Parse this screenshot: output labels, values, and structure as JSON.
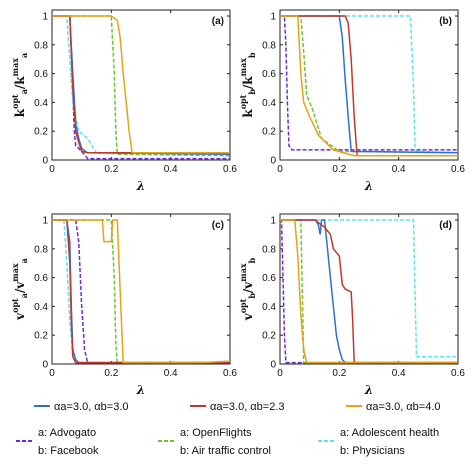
{
  "colors": {
    "blue": "#2f6fd0",
    "red": "#c0392b",
    "orange": "#e6a21a",
    "purple": "#6a2bd6",
    "green": "#6cc432",
    "cyan": "#5de3ef"
  },
  "legend": {
    "params": [
      {
        "color": "blue",
        "label": "αa=3.0,   αb=3.0"
      },
      {
        "color": "red",
        "label": "αa=3.0,   αb=2.3"
      },
      {
        "color": "orange",
        "label": "αa=3.0,   αb=4.0"
      }
    ],
    "datasets": [
      {
        "color": "purple",
        "line1": "a: Advogato",
        "line2": "b: Facebook"
      },
      {
        "color": "green",
        "line1": "a: OpenFlights",
        "line2": "b: Air traffic control"
      },
      {
        "color": "cyan",
        "line1": "a: Adolescent health",
        "line2": "b: Physicians"
      }
    ]
  },
  "chart_data": [
    {
      "type": "line",
      "panel": "(a)",
      "xlabel": "λ",
      "ylabel_html": "k_a^opt / k_a^max",
      "xlim": [
        0,
        0.6
      ],
      "ylim": [
        0,
        1
      ],
      "xticks": [
        "0",
        "0.2",
        "0.4",
        "0.6"
      ],
      "yticks": [
        "0",
        "0.2",
        "0.4",
        "0.6",
        "0.8",
        "1"
      ],
      "series": [
        {
          "color": "purple",
          "dash": true,
          "x": [
            0,
            0.06,
            0.07,
            0.075,
            0.08,
            0.1,
            0.12,
            0.6
          ],
          "y": [
            1,
            1,
            0.5,
            0.2,
            0.1,
            0.06,
            0.01,
            0.01
          ]
        },
        {
          "color": "green",
          "dash": true,
          "x": [
            0,
            0.2,
            0.21,
            0.215,
            0.22,
            0.6
          ],
          "y": [
            1,
            1,
            0.6,
            0.2,
            0.04,
            0.03
          ]
        },
        {
          "color": "cyan",
          "dash": true,
          "x": [
            0,
            0.05,
            0.07,
            0.09,
            0.12,
            0.15,
            0.6
          ],
          "y": [
            1,
            1,
            0.4,
            0.2,
            0.15,
            0.05,
            0.04
          ]
        },
        {
          "color": "blue",
          "dash": false,
          "x": [
            0,
            0.06,
            0.07,
            0.08,
            0.09,
            0.1,
            0.12,
            0.6
          ],
          "y": [
            1,
            1,
            0.6,
            0.25,
            0.15,
            0.08,
            0.05,
            0.04
          ]
        },
        {
          "color": "red",
          "dash": false,
          "x": [
            0,
            0.06,
            0.07,
            0.08,
            0.09,
            0.1,
            0.12,
            0.6
          ],
          "y": [
            1,
            1,
            0.5,
            0.2,
            0.12,
            0.06,
            0.05,
            0.05
          ]
        },
        {
          "color": "orange",
          "dash": false,
          "x": [
            0,
            0.2,
            0.22,
            0.23,
            0.24,
            0.25,
            0.26,
            0.27,
            0.6
          ],
          "y": [
            1,
            1,
            0.97,
            0.85,
            0.6,
            0.4,
            0.2,
            0.05,
            0.05
          ]
        }
      ]
    },
    {
      "type": "line",
      "panel": "(b)",
      "xlabel": "λ",
      "ylabel_html": "k_b^opt / k_b^max",
      "xlim": [
        0,
        0.6
      ],
      "ylim": [
        0,
        1
      ],
      "xticks": [
        "0",
        "0.2",
        "0.4",
        "0.6"
      ],
      "yticks": [
        "0",
        "0.2",
        "0.4",
        "0.6",
        "0.8",
        "1"
      ],
      "series": [
        {
          "color": "purple",
          "dash": true,
          "x": [
            0,
            0.015,
            0.02,
            0.025,
            0.03,
            0.04,
            0.6
          ],
          "y": [
            1,
            1,
            0.8,
            0.4,
            0.1,
            0.07,
            0.07
          ]
        },
        {
          "color": "green",
          "dash": true,
          "x": [
            0,
            0.07,
            0.08,
            0.085,
            0.09,
            0.11,
            0.14,
            0.2,
            0.6
          ],
          "y": [
            1,
            1,
            0.75,
            0.6,
            0.45,
            0.35,
            0.15,
            0.06,
            0.05
          ]
        },
        {
          "color": "cyan",
          "dash": true,
          "x": [
            0,
            0.44,
            0.45,
            0.455,
            0.46,
            0.6
          ],
          "y": [
            1,
            1,
            0.5,
            0.1,
            0.06,
            0.05
          ]
        },
        {
          "color": "blue",
          "dash": false,
          "x": [
            0,
            0.2,
            0.21,
            0.22,
            0.23,
            0.24,
            0.6
          ],
          "y": [
            1,
            1,
            0.85,
            0.55,
            0.3,
            0.06,
            0.05
          ]
        },
        {
          "color": "red",
          "dash": false,
          "x": [
            0,
            0.22,
            0.23,
            0.24,
            0.245,
            0.25,
            0.26,
            0.6
          ],
          "y": [
            1,
            1,
            0.95,
            0.7,
            0.5,
            0.3,
            0.03,
            0.03
          ]
        },
        {
          "color": "orange",
          "dash": false,
          "x": [
            0,
            0.06,
            0.07,
            0.08,
            0.1,
            0.13,
            0.18,
            0.25,
            0.6
          ],
          "y": [
            1,
            1,
            0.6,
            0.4,
            0.3,
            0.17,
            0.07,
            0.03,
            0.03
          ]
        }
      ]
    },
    {
      "type": "line",
      "panel": "(c)",
      "xlabel": "λ",
      "ylabel_html": "v_a^opt / v_a^max",
      "xlim": [
        0,
        0.6
      ],
      "ylim": [
        0,
        1
      ],
      "xticks": [
        "0",
        "0.2",
        "0.4",
        "0.6"
      ],
      "yticks": [
        "0",
        "0.2",
        "0.4",
        "0.6",
        "0.8",
        "1"
      ],
      "series": [
        {
          "color": "purple",
          "dash": true,
          "x": [
            0,
            0.08,
            0.09,
            0.1,
            0.11,
            0.12,
            0.6
          ],
          "y": [
            1,
            1,
            0.85,
            0.4,
            0.1,
            0.01,
            0.01
          ]
        },
        {
          "color": "green",
          "dash": true,
          "x": [
            0,
            0.2,
            0.21,
            0.215,
            0.22,
            0.6
          ],
          "y": [
            1,
            1,
            0.6,
            0.15,
            0.01,
            0.01
          ]
        },
        {
          "color": "cyan",
          "dash": true,
          "x": [
            0,
            0.04,
            0.05,
            0.06,
            0.07,
            0.08,
            0.6
          ],
          "y": [
            1,
            1,
            0.7,
            0.3,
            0.05,
            0.01,
            0.01
          ]
        },
        {
          "color": "blue",
          "dash": false,
          "x": [
            0,
            0.05,
            0.06,
            0.065,
            0.07,
            0.08,
            0.09,
            0.6
          ],
          "y": [
            1,
            1,
            0.85,
            0.4,
            0.1,
            0.03,
            0.01,
            0.01
          ]
        },
        {
          "color": "red",
          "dash": false,
          "x": [
            0,
            0.05,
            0.06,
            0.065,
            0.07,
            0.08,
            0.6
          ],
          "y": [
            1,
            1,
            0.7,
            0.3,
            0.05,
            0.01,
            0.01
          ]
        },
        {
          "color": "orange",
          "dash": false,
          "x": [
            0,
            0.17,
            0.175,
            0.2,
            0.205,
            0.22,
            0.23,
            0.24,
            0.5,
            0.6
          ],
          "y": [
            1,
            1,
            0.85,
            0.85,
            1,
            1,
            0.5,
            0.01,
            0.01,
            0.02
          ]
        }
      ]
    },
    {
      "type": "line",
      "panel": "(d)",
      "xlabel": "λ",
      "ylabel_html": "v_b^opt / v_b^max",
      "xlim": [
        0,
        0.6
      ],
      "ylim": [
        0,
        1
      ],
      "xticks": [
        "0",
        "0.2",
        "0.4",
        "0.6"
      ],
      "yticks": [
        "0",
        "0.2",
        "0.4",
        "0.6",
        "0.8",
        "1"
      ],
      "series": [
        {
          "color": "purple",
          "dash": true,
          "x": [
            0,
            0.005,
            0.01,
            0.015,
            0.02,
            0.6
          ],
          "y": [
            1,
            1,
            0.6,
            0.2,
            0.01,
            0.01
          ]
        },
        {
          "color": "green",
          "dash": true,
          "x": [
            0,
            0.07,
            0.075,
            0.08,
            0.6
          ],
          "y": [
            1,
            1,
            0.5,
            0.01,
            0.01
          ]
        },
        {
          "color": "cyan",
          "dash": true,
          "x": [
            0,
            0.45,
            0.455,
            0.46,
            0.6
          ],
          "y": [
            1,
            1,
            0.5,
            0.05,
            0.05
          ]
        },
        {
          "color": "blue",
          "dash": false,
          "x": [
            0,
            0.1,
            0.12,
            0.13,
            0.135,
            0.14,
            0.15,
            0.16,
            0.17,
            0.18,
            0.19,
            0.2,
            0.21,
            0.22,
            0.6
          ],
          "y": [
            1,
            1,
            1,
            0.96,
            0.9,
            1,
            1,
            0.8,
            0.6,
            0.4,
            0.2,
            0.1,
            0.03,
            0.01,
            0.01
          ]
        },
        {
          "color": "red",
          "dash": false,
          "x": [
            0,
            0.12,
            0.13,
            0.15,
            0.17,
            0.18,
            0.2,
            0.21,
            0.22,
            0.24,
            0.245,
            0.25,
            0.6
          ],
          "y": [
            1,
            1,
            0.98,
            0.95,
            0.9,
            0.8,
            0.75,
            0.55,
            0.52,
            0.5,
            0.3,
            0.01,
            0.01
          ]
        },
        {
          "color": "orange",
          "dash": false,
          "x": [
            0,
            0.05,
            0.06,
            0.07,
            0.08,
            0.09,
            0.6
          ],
          "y": [
            1,
            1,
            0.75,
            0.35,
            0.1,
            0.01,
            0.01
          ]
        }
      ]
    }
  ]
}
